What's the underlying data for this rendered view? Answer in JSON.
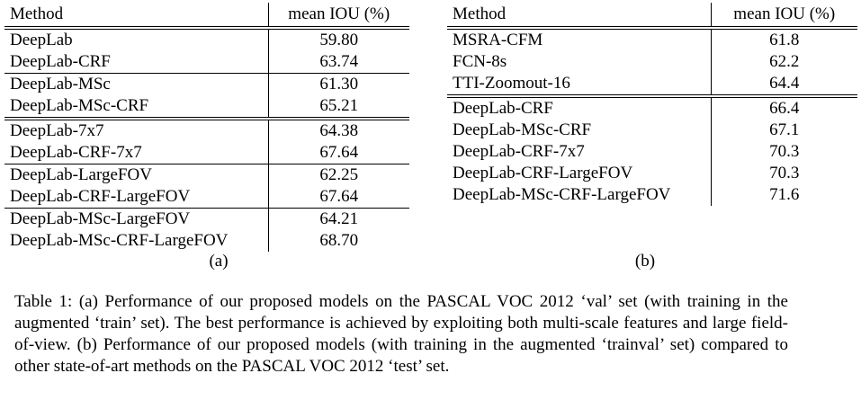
{
  "table_a": {
    "headers": {
      "method": "Method",
      "metric": "mean IOU (%)"
    },
    "rows": [
      {
        "method": "DeepLab",
        "value": "59.80",
        "line": "double"
      },
      {
        "method": "DeepLab-CRF",
        "value": "63.74",
        "line": "none"
      },
      {
        "method": "DeepLab-MSc",
        "value": "61.30",
        "line": "single"
      },
      {
        "method": "DeepLab-MSc-CRF",
        "value": "65.21",
        "line": "none"
      },
      {
        "method": "DeepLab-7x7",
        "value": "64.38",
        "line": "double"
      },
      {
        "method": "DeepLab-CRF-7x7",
        "value": "67.64",
        "line": "none"
      },
      {
        "method": "DeepLab-LargeFOV",
        "value": "62.25",
        "line": "single"
      },
      {
        "method": "DeepLab-CRF-LargeFOV",
        "value": "67.64",
        "line": "none"
      },
      {
        "method": "DeepLab-MSc-LargeFOV",
        "value": "64.21",
        "line": "single"
      },
      {
        "method": "DeepLab-MSc-CRF-LargeFOV",
        "value": "68.70",
        "line": "none"
      }
    ],
    "label": "(a)"
  },
  "table_b": {
    "headers": {
      "method": "Method",
      "metric": "mean IOU (%)"
    },
    "rows": [
      {
        "method": "MSRA-CFM",
        "value": "61.8",
        "line": "double"
      },
      {
        "method": "FCN-8s",
        "value": "62.2",
        "line": "none"
      },
      {
        "method": "TTI-Zoomout-16",
        "value": "64.4",
        "line": "none"
      },
      {
        "method": "DeepLab-CRF",
        "value": "66.4",
        "line": "double"
      },
      {
        "method": "DeepLab-MSc-CRF",
        "value": "67.1",
        "line": "none"
      },
      {
        "method": "DeepLab-CRF-7x7",
        "value": "70.3",
        "line": "none"
      },
      {
        "method": "DeepLab-CRF-LargeFOV",
        "value": "70.3",
        "line": "none"
      },
      {
        "method": "DeepLab-MSc-CRF-LargeFOV",
        "value": "71.6",
        "line": "none"
      }
    ],
    "label": "(b)"
  },
  "caption": "Table 1: (a) Performance of our proposed models on the PASCAL VOC 2012 ‘val’ set (with training in the augmented ‘train’ set). The best performance is achieved by exploiting both multi-scale features and large field-of-view. (b) Performance of our proposed models (with training in the augmented ‘trainval’ set) compared to other state-of-art methods on the PASCAL VOC 2012 ‘test’ set."
}
